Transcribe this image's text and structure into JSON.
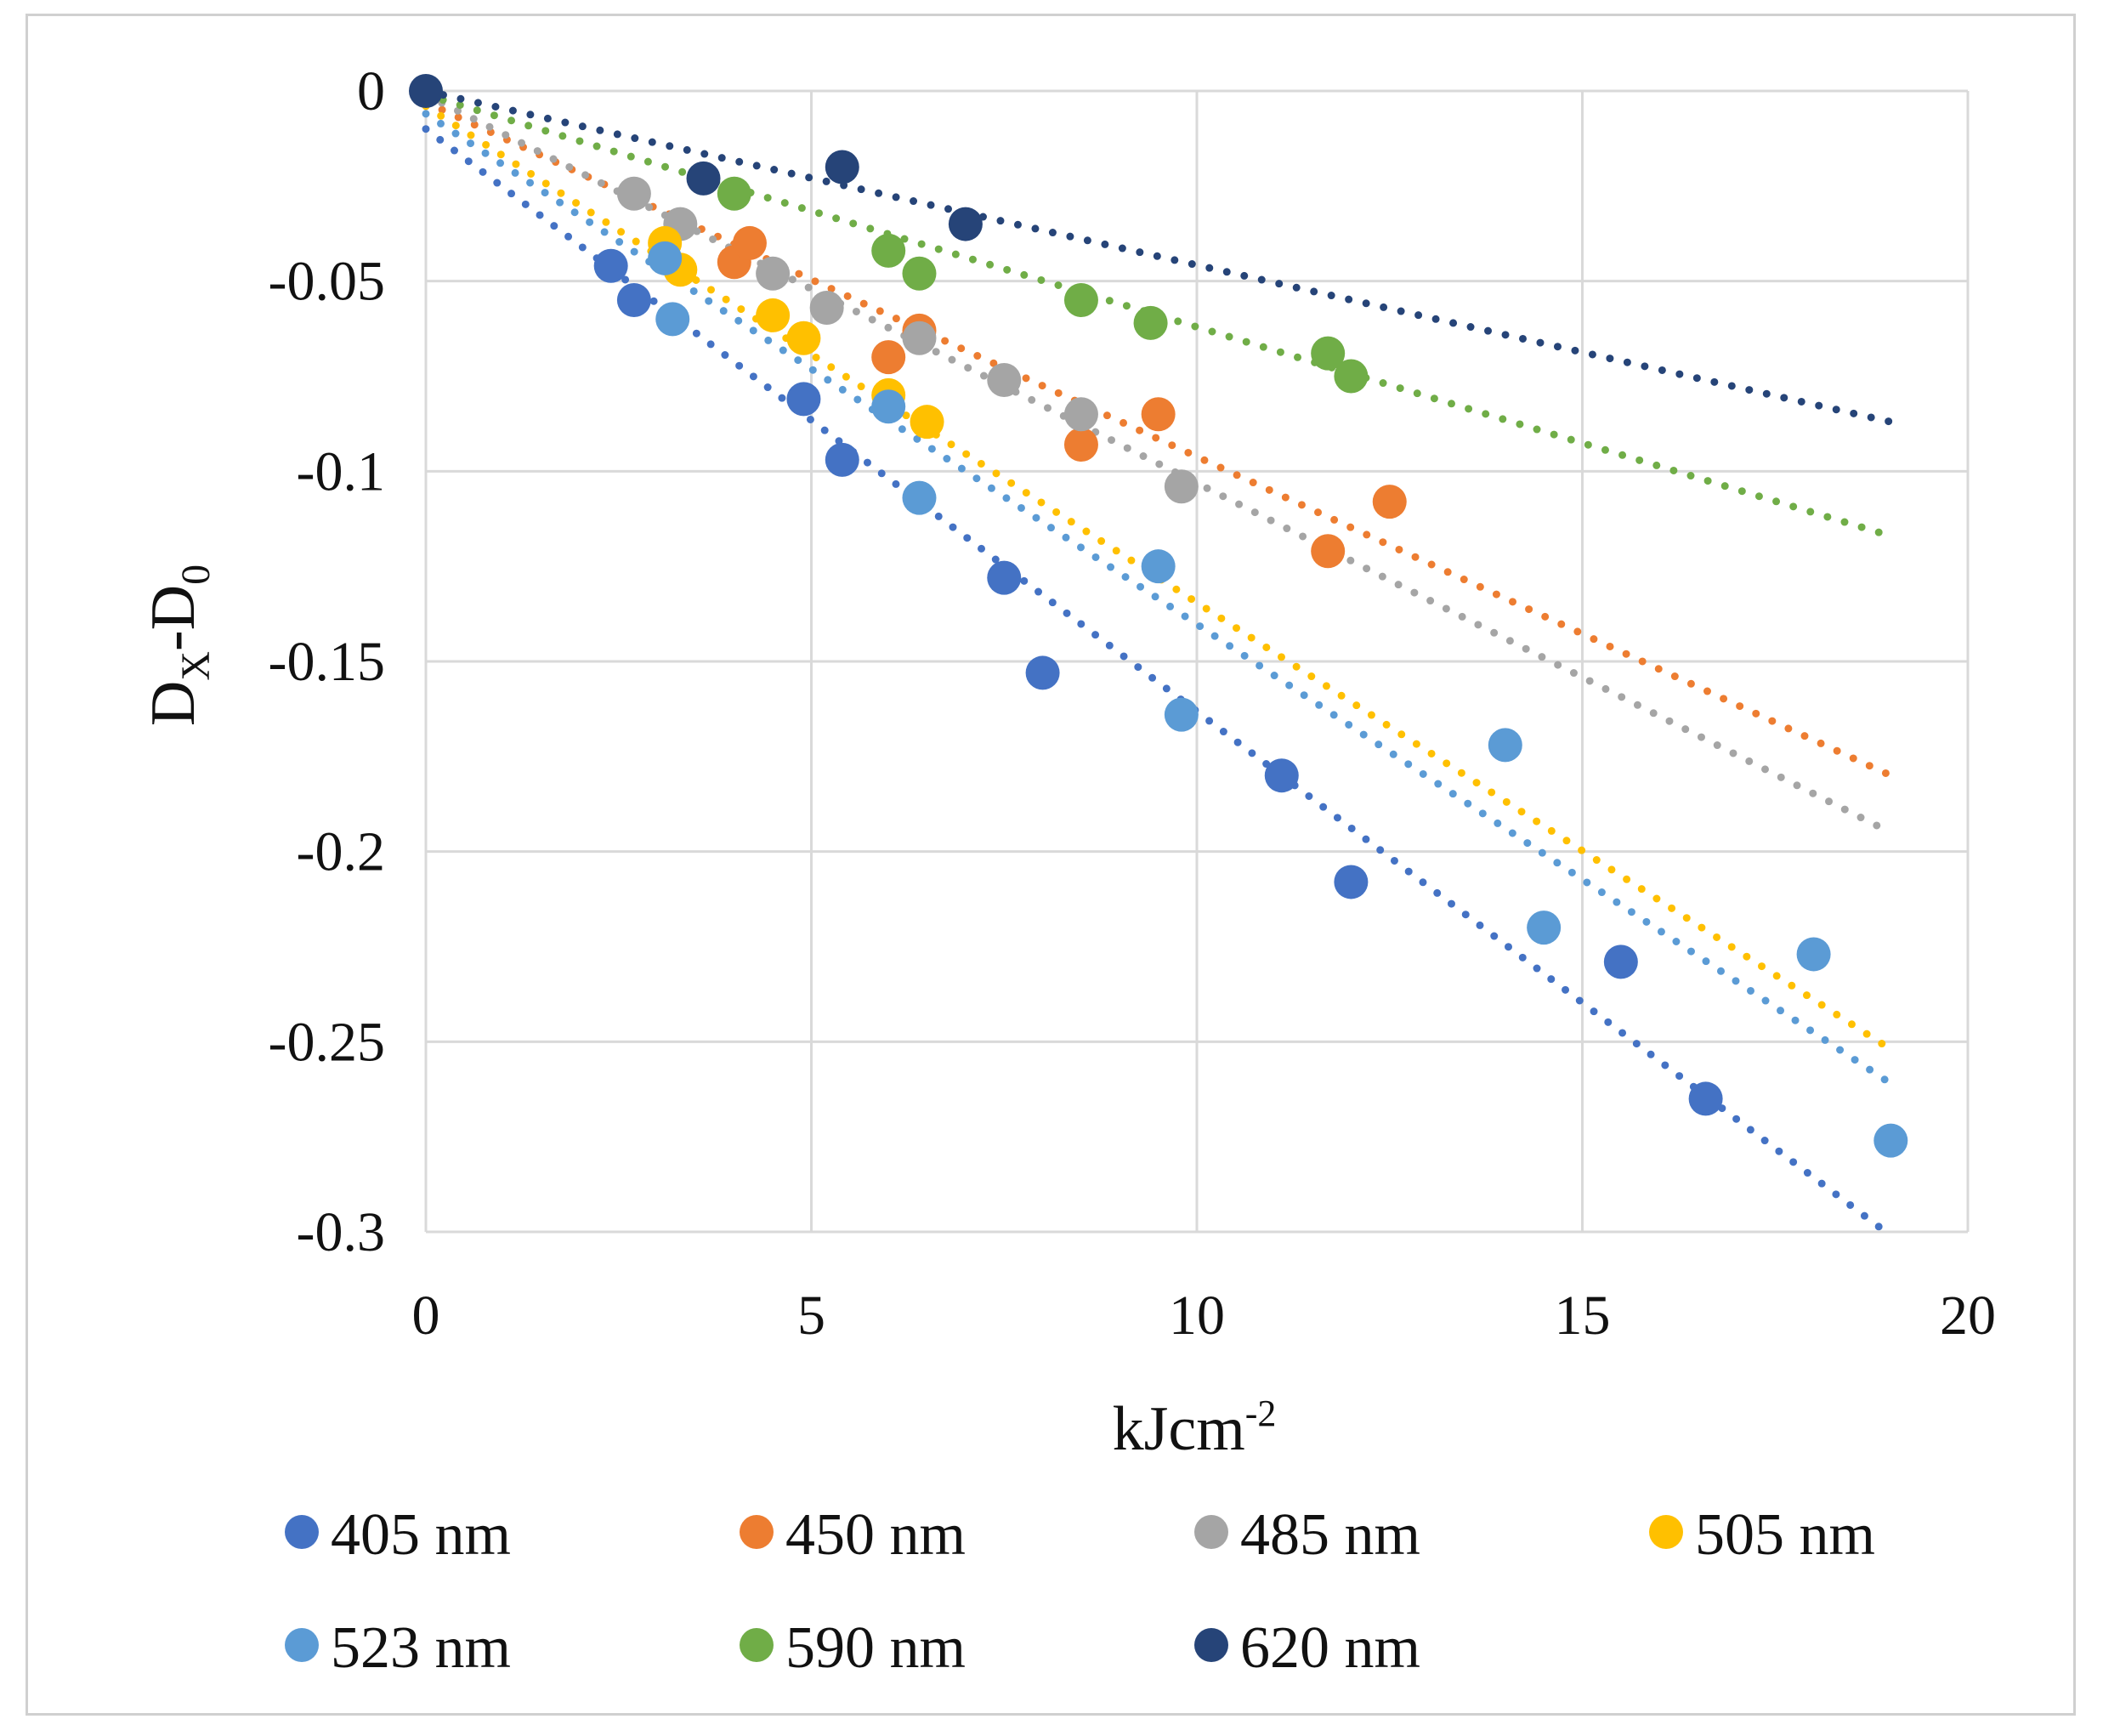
{
  "chart_data": {
    "type": "scatter",
    "title": "",
    "xlabel": "kJcm",
    "xlabel_superscript": "-2",
    "ylabel": "D",
    "ylabel_sub_x": "X",
    "ylabel_mid": "-D",
    "ylabel_sub_0": "0",
    "xlim": [
      0,
      20
    ],
    "ylim": [
      -0.3,
      0
    ],
    "x_ticks": [
      0,
      5,
      10,
      15,
      20
    ],
    "x_tick_labels": [
      "0",
      "5",
      "10",
      "15",
      "20"
    ],
    "y_ticks": [
      0,
      -0.05,
      -0.1,
      -0.15,
      -0.2,
      -0.25,
      -0.3
    ],
    "y_tick_labels": [
      "0",
      "-0.05",
      "-0.1",
      "-0.15",
      "-0.2",
      "-0.25",
      "-0.3"
    ],
    "grid": true,
    "legend_position": "bottom",
    "series": [
      {
        "name": "405 nm",
        "color": "#4472C4",
        "points": [
          [
            2.4,
            -0.046
          ],
          [
            2.7,
            -0.055
          ],
          [
            4.9,
            -0.081
          ],
          [
            5.4,
            -0.097
          ],
          [
            7.5,
            -0.128
          ],
          [
            8.0,
            -0.153
          ],
          [
            11.1,
            -0.18
          ],
          [
            12.0,
            -0.208
          ],
          [
            15.5,
            -0.229
          ],
          [
            16.6,
            -0.265
          ]
        ],
        "trend": [
          [
            0,
            -0.01
          ],
          [
            19,
            -0.301
          ]
        ]
      },
      {
        "name": "450 nm",
        "color": "#ED7D31",
        "points": [
          [
            4.0,
            -0.045
          ],
          [
            4.2,
            -0.04
          ],
          [
            6.0,
            -0.07
          ],
          [
            6.4,
            -0.063
          ],
          [
            8.5,
            -0.093
          ],
          [
            9.5,
            -0.085
          ],
          [
            11.7,
            -0.121
          ],
          [
            12.5,
            -0.108
          ]
        ],
        "trend": [
          [
            0,
            -0.003
          ],
          [
            19,
            -0.18
          ]
        ]
      },
      {
        "name": "485 nm",
        "color": "#A5A5A5",
        "points": [
          [
            2.7,
            -0.027
          ],
          [
            3.3,
            -0.035
          ],
          [
            4.5,
            -0.048
          ],
          [
            5.2,
            -0.057
          ],
          [
            6.4,
            -0.065
          ],
          [
            7.5,
            -0.076
          ],
          [
            8.5,
            -0.085
          ],
          [
            9.8,
            -0.104
          ]
        ],
        "trend": [
          [
            0,
            -0.001
          ],
          [
            19,
            -0.195
          ]
        ]
      },
      {
        "name": "505 nm",
        "color": "#FFC000",
        "points": [
          [
            3.1,
            -0.04
          ],
          [
            3.3,
            -0.047
          ],
          [
            4.5,
            -0.059
          ],
          [
            4.9,
            -0.065
          ],
          [
            6.0,
            -0.08
          ],
          [
            6.5,
            -0.087
          ]
        ],
        "trend": [
          [
            0,
            -0.004
          ],
          [
            19,
            -0.252
          ]
        ]
      },
      {
        "name": "523 nm",
        "color": "#5B9BD5",
        "points": [
          [
            3.1,
            -0.044
          ],
          [
            3.2,
            -0.06
          ],
          [
            6.0,
            -0.083
          ],
          [
            6.4,
            -0.107
          ],
          [
            9.5,
            -0.125
          ],
          [
            9.8,
            -0.164
          ],
          [
            14.0,
            -0.172
          ],
          [
            14.5,
            -0.22
          ],
          [
            18.0,
            -0.227
          ],
          [
            19.0,
            -0.276
          ]
        ],
        "trend": [
          [
            0,
            -0.006
          ],
          [
            19,
            -0.261
          ]
        ]
      },
      {
        "name": "590 nm",
        "color": "#70AD47",
        "points": [
          [
            4.0,
            -0.027
          ],
          [
            6.0,
            -0.042
          ],
          [
            6.4,
            -0.048
          ],
          [
            8.5,
            -0.055
          ],
          [
            9.4,
            -0.061
          ],
          [
            11.7,
            -0.069
          ],
          [
            12.0,
            -0.075
          ]
        ],
        "trend": [
          [
            0,
            -0.001
          ],
          [
            19,
            -0.117
          ]
        ]
      },
      {
        "name": "620 nm",
        "color": "#264478",
        "points": [
          [
            0,
            0
          ],
          [
            3.6,
            -0.023
          ],
          [
            5.4,
            -0.02
          ],
          [
            7.0,
            -0.035
          ]
        ],
        "trend": [
          [
            0,
            0
          ],
          [
            19,
            -0.087
          ]
        ]
      }
    ]
  }
}
